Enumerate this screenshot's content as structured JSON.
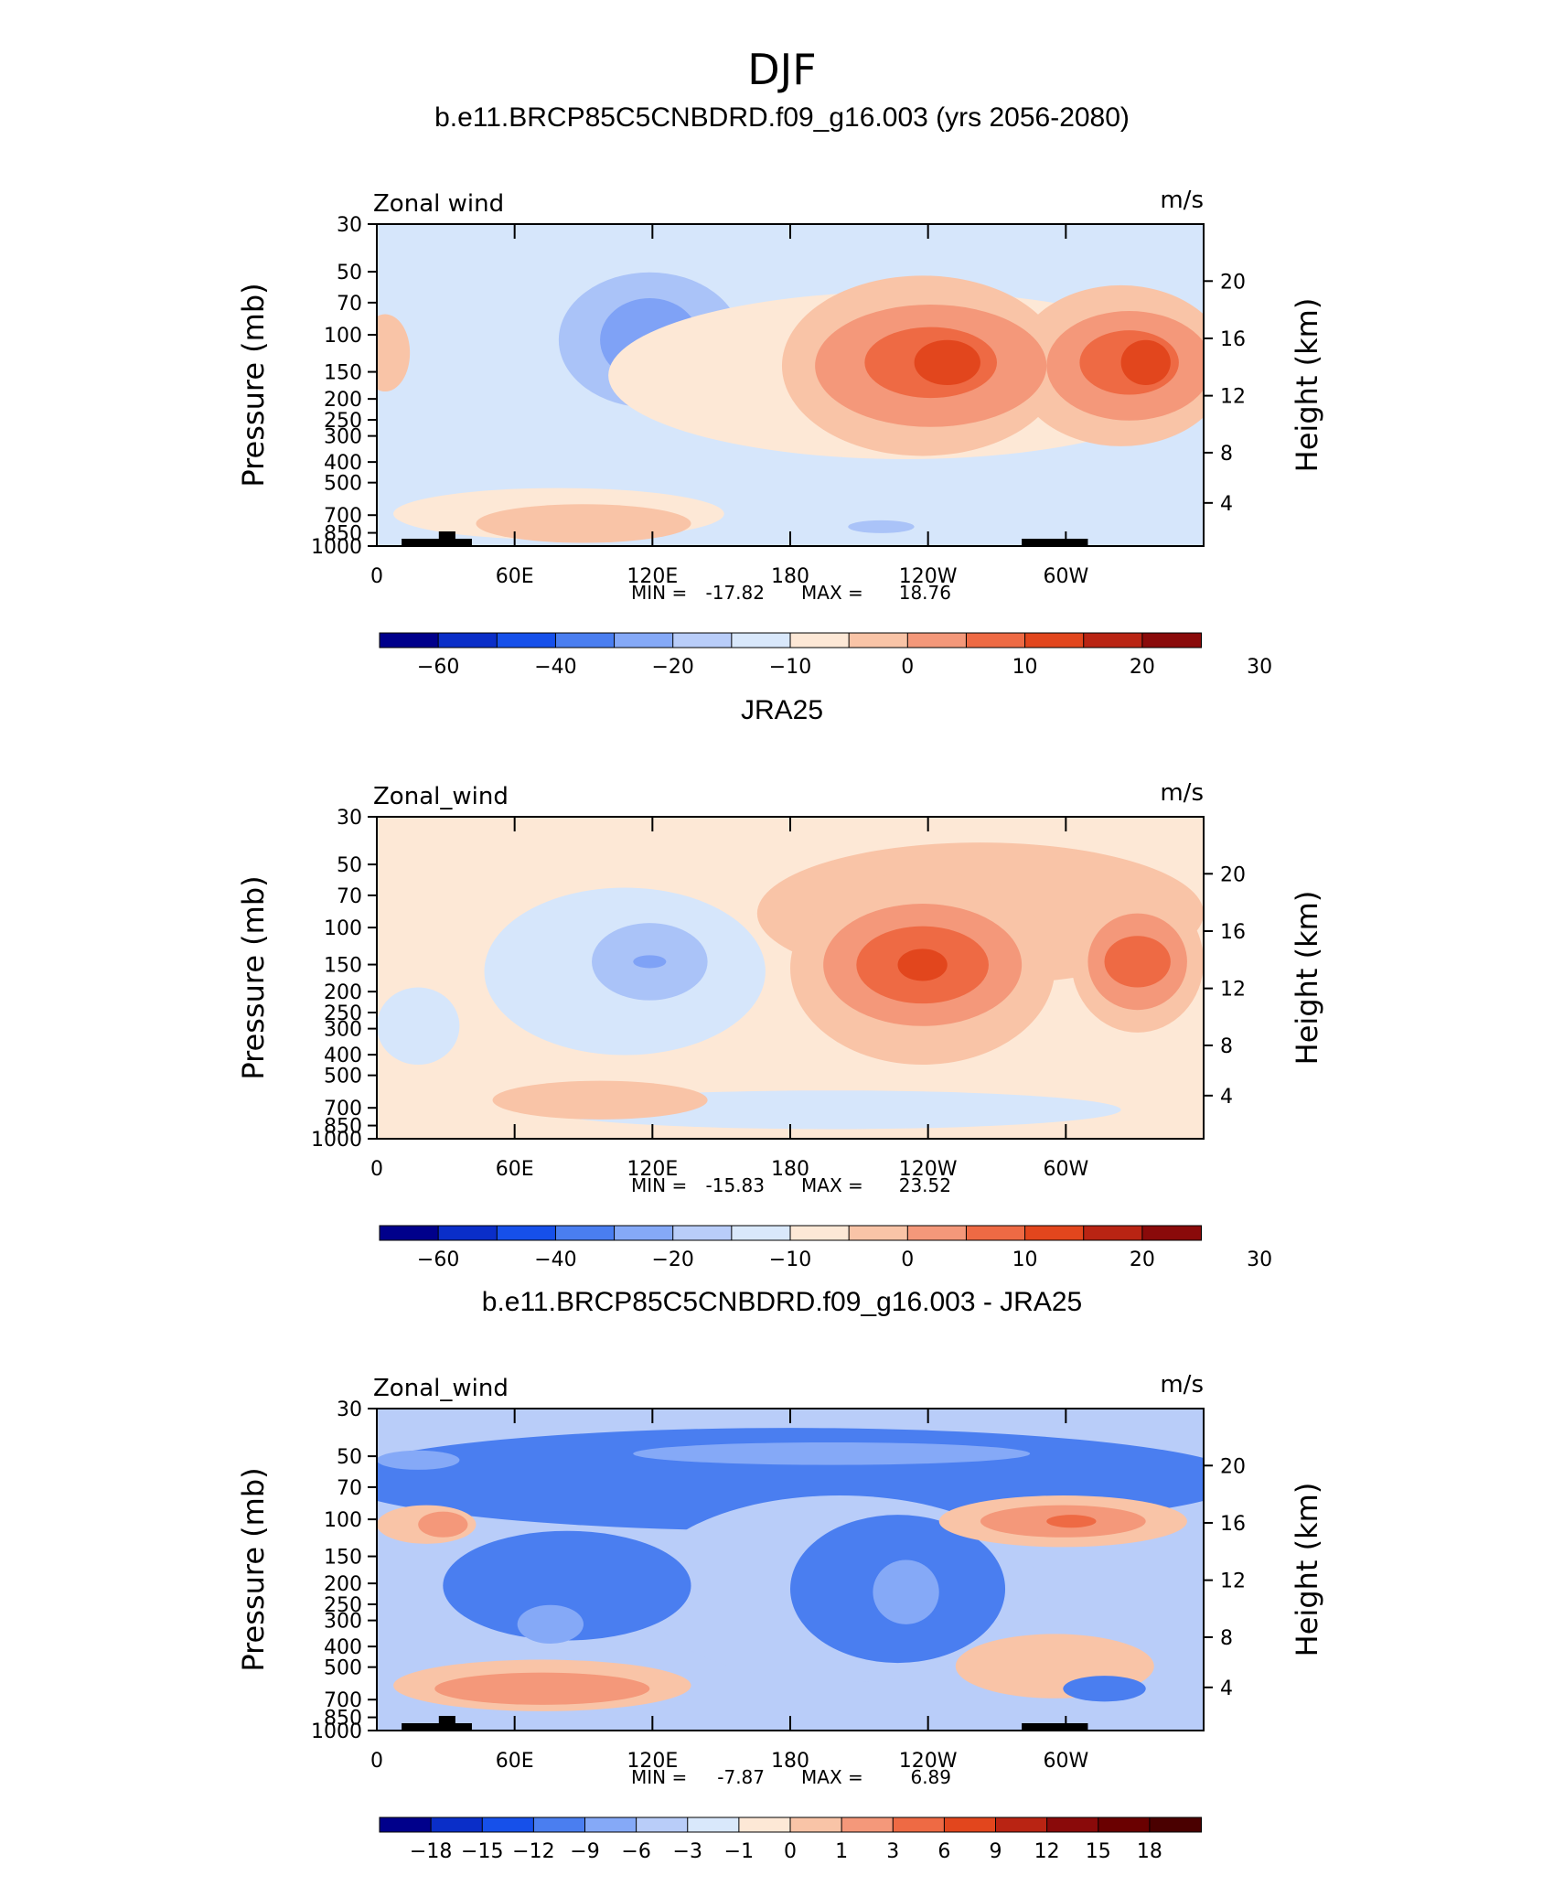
{
  "figure": {
    "title": "DJF"
  },
  "chart_data": [
    {
      "type": "contour",
      "title": "b.e11.BRCP85C5CNBDRD.f09_g16.003 (yrs 2056-2080)",
      "left_string": "Zonal wind",
      "right_string": "m/s",
      "ylabel": "Pressure (mb)",
      "ylabel_right": "Height (km)",
      "xticks": [
        "0",
        "60E",
        "120E",
        "180",
        "120W",
        "60W"
      ],
      "yticks": [
        "30",
        "50",
        "70",
        "100",
        "150",
        "200",
        "250",
        "300",
        "400",
        "500",
        "700",
        "850",
        "1000"
      ],
      "yticks_right": [
        "20",
        "16",
        "12",
        "8",
        "4"
      ],
      "stats": {
        "min_label": "MIN =",
        "min": "-17.82",
        "max_label": "MAX =",
        "max": "18.76"
      },
      "colorbar_labels": [
        "-60",
        "-40",
        "-20",
        "-10",
        "0",
        "10",
        "20",
        "30"
      ],
      "has_topography": true,
      "blobs": [
        {
          "cx": 0.17,
          "cy": 0.09,
          "rx": 0.12,
          "ry": 0.06,
          "level": -5
        },
        {
          "cx": 0.33,
          "cy": 0.36,
          "rx": 0.11,
          "ry": 0.21,
          "level": -10
        },
        {
          "cx": 0.33,
          "cy": 0.36,
          "rx": 0.06,
          "ry": 0.13,
          "level": -20
        },
        {
          "cx": 0.64,
          "cy": 0.47,
          "rx": 0.36,
          "ry": 0.26,
          "level": 0
        },
        {
          "cx": 0.66,
          "cy": 0.44,
          "rx": 0.17,
          "ry": 0.28,
          "level": 5
        },
        {
          "cx": 0.9,
          "cy": 0.44,
          "rx": 0.13,
          "ry": 0.25,
          "level": 5
        },
        {
          "cx": 0.67,
          "cy": 0.44,
          "rx": 0.14,
          "ry": 0.19,
          "level": 10
        },
        {
          "cx": 0.91,
          "cy": 0.44,
          "rx": 0.1,
          "ry": 0.17,
          "level": 10
        },
        {
          "cx": 0.67,
          "cy": 0.43,
          "rx": 0.08,
          "ry": 0.11,
          "level": 15
        },
        {
          "cx": 0.91,
          "cy": 0.43,
          "rx": 0.06,
          "ry": 0.1,
          "level": 15
        },
        {
          "cx": 0.69,
          "cy": 0.43,
          "rx": 0.04,
          "ry": 0.07,
          "level": 20
        },
        {
          "cx": 0.93,
          "cy": 0.43,
          "rx": 0.03,
          "ry": 0.07,
          "level": 20
        },
        {
          "cx": 0.01,
          "cy": 0.4,
          "rx": 0.03,
          "ry": 0.12,
          "level": 5
        },
        {
          "cx": 0.22,
          "cy": 0.9,
          "rx": 0.2,
          "ry": 0.08,
          "level": 0
        },
        {
          "cx": 0.25,
          "cy": 0.93,
          "rx": 0.13,
          "ry": 0.06,
          "level": 5
        },
        {
          "cx": 0.61,
          "cy": 0.94,
          "rx": 0.04,
          "ry": 0.02,
          "level": -10
        }
      ]
    },
    {
      "type": "contour",
      "title": "JRA25",
      "left_string": "Zonal_wind",
      "right_string": "m/s",
      "ylabel": "Pressure (mb)",
      "ylabel_right": "Height (km)",
      "xticks": [
        "0",
        "60E",
        "120E",
        "180",
        "120W",
        "60W"
      ],
      "yticks": [
        "30",
        "50",
        "70",
        "100",
        "150",
        "200",
        "250",
        "300",
        "400",
        "500",
        "700",
        "850",
        "1000"
      ],
      "yticks_right": [
        "20",
        "16",
        "12",
        "8",
        "4"
      ],
      "stats": {
        "min_label": "MIN =",
        "min": "-15.83",
        "max_label": "MAX =",
        "max": "23.52"
      },
      "colorbar_labels": [
        "-60",
        "-40",
        "-20",
        "-10",
        "0",
        "10",
        "20",
        "30"
      ],
      "has_topography": false,
      "blobs": [
        {
          "cx": 0.3,
          "cy": 0.48,
          "rx": 0.17,
          "ry": 0.26,
          "level": -5
        },
        {
          "cx": 0.05,
          "cy": 0.65,
          "rx": 0.05,
          "ry": 0.12,
          "level": -5
        },
        {
          "cx": 0.55,
          "cy": 0.91,
          "rx": 0.35,
          "ry": 0.06,
          "level": -5
        },
        {
          "cx": 0.33,
          "cy": 0.45,
          "rx": 0.07,
          "ry": 0.12,
          "level": -10
        },
        {
          "cx": 0.33,
          "cy": 0.45,
          "rx": 0.02,
          "ry": 0.02,
          "level": -20
        },
        {
          "cx": 0.73,
          "cy": 0.3,
          "rx": 0.27,
          "ry": 0.22,
          "level": 5
        },
        {
          "cx": 0.66,
          "cy": 0.47,
          "rx": 0.16,
          "ry": 0.3,
          "level": 5
        },
        {
          "cx": 0.92,
          "cy": 0.45,
          "rx": 0.08,
          "ry": 0.22,
          "level": 5
        },
        {
          "cx": 0.66,
          "cy": 0.46,
          "rx": 0.12,
          "ry": 0.19,
          "level": 10
        },
        {
          "cx": 0.92,
          "cy": 0.45,
          "rx": 0.06,
          "ry": 0.15,
          "level": 10
        },
        {
          "cx": 0.66,
          "cy": 0.46,
          "rx": 0.08,
          "ry": 0.12,
          "level": 15
        },
        {
          "cx": 0.92,
          "cy": 0.45,
          "rx": 0.04,
          "ry": 0.08,
          "level": 15
        },
        {
          "cx": 0.66,
          "cy": 0.46,
          "rx": 0.03,
          "ry": 0.05,
          "level": 20
        },
        {
          "cx": 0.27,
          "cy": 0.88,
          "rx": 0.13,
          "ry": 0.06,
          "level": 5
        }
      ]
    },
    {
      "type": "contour",
      "title": "b.e11.BRCP85C5CNBDRD.f09_g16.003 - JRA25",
      "left_string": "Zonal_wind",
      "right_string": "m/s",
      "ylabel": "Pressure (mb)",
      "ylabel_right": "Height (km)",
      "xticks": [
        "0",
        "60E",
        "120E",
        "180",
        "120W",
        "60W"
      ],
      "yticks": [
        "30",
        "50",
        "70",
        "100",
        "150",
        "200",
        "250",
        "300",
        "400",
        "500",
        "700",
        "850",
        "1000"
      ],
      "yticks_right": [
        "20",
        "16",
        "12",
        "8",
        "4"
      ],
      "stats": {
        "min_label": "MIN =",
        "min": "-7.87",
        "max_label": "MAX =",
        "max": "6.89"
      },
      "colorbar_labels": [
        "-18",
        "-15",
        "-12",
        "-9",
        "-6",
        "-3",
        "-1",
        "0",
        "1",
        "3",
        "6",
        "9",
        "12",
        "15",
        "18"
      ],
      "has_topography": true,
      "blobs": [
        {
          "cx": 0.5,
          "cy": 0.22,
          "rx": 0.55,
          "ry": 0.16,
          "level": -3
        },
        {
          "cx": 0.05,
          "cy": 0.16,
          "rx": 0.05,
          "ry": 0.03,
          "level": -6
        },
        {
          "cx": 0.55,
          "cy": 0.14,
          "rx": 0.24,
          "ry": 0.035,
          "level": -6
        },
        {
          "cx": 0.56,
          "cy": 0.56,
          "rx": 0.24,
          "ry": 0.29,
          "level": -1
        },
        {
          "cx": 0.63,
          "cy": 0.56,
          "rx": 0.13,
          "ry": 0.23,
          "level": -3
        },
        {
          "cx": 0.64,
          "cy": 0.57,
          "rx": 0.04,
          "ry": 0.1,
          "level": -6
        },
        {
          "cx": 0.23,
          "cy": 0.55,
          "rx": 0.15,
          "ry": 0.17,
          "level": -3
        },
        {
          "cx": 0.21,
          "cy": 0.67,
          "rx": 0.04,
          "ry": 0.06,
          "level": -6
        },
        {
          "cx": 0.06,
          "cy": 0.36,
          "rx": 0.06,
          "ry": 0.06,
          "level": 1
        },
        {
          "cx": 0.08,
          "cy": 0.36,
          "rx": 0.03,
          "ry": 0.04,
          "level": 3
        },
        {
          "cx": 0.83,
          "cy": 0.35,
          "rx": 0.15,
          "ry": 0.08,
          "level": 1
        },
        {
          "cx": 0.83,
          "cy": 0.35,
          "rx": 0.1,
          "ry": 0.05,
          "level": 3
        },
        {
          "cx": 0.84,
          "cy": 0.35,
          "rx": 0.03,
          "ry": 0.02,
          "level": 6
        },
        {
          "cx": 0.2,
          "cy": 0.86,
          "rx": 0.18,
          "ry": 0.08,
          "level": 1
        },
        {
          "cx": 0.2,
          "cy": 0.87,
          "rx": 0.13,
          "ry": 0.05,
          "level": 3
        },
        {
          "cx": 0.82,
          "cy": 0.8,
          "rx": 0.12,
          "ry": 0.1,
          "level": 1
        },
        {
          "cx": 0.88,
          "cy": 0.87,
          "rx": 0.05,
          "ry": 0.04,
          "level": -3
        }
      ]
    }
  ],
  "palettes": {
    "wind": [
      "#00008b",
      "#0a2ec8",
      "#1650ea",
      "#4a7ef0",
      "#85a9f7",
      "#b9cdf9",
      "#d9e8fb",
      "#fde8d6",
      "#f9c4a7",
      "#f4987a",
      "#ee6a44",
      "#e2461d",
      "#b92413",
      "#8a0a0a"
    ],
    "diff": [
      "#00008b",
      "#0a2ec8",
      "#1650ea",
      "#4a7ef0",
      "#85a9f7",
      "#b9cdf9",
      "#d9e8fb",
      "#fde8d6",
      "#f9c4a7",
      "#f4987a",
      "#ee6a44",
      "#e2461d",
      "#b92413",
      "#8a0a0a",
      "#6a0000",
      "#4a0000"
    ]
  },
  "levels": {
    "wind": [
      -70,
      -60,
      -50,
      -40,
      -30,
      -20,
      -10,
      -5,
      0,
      5,
      10,
      15,
      20,
      25,
      30
    ],
    "diff": [
      -18,
      -15,
      -12,
      -9,
      -6,
      -3,
      -1,
      0,
      1,
      3,
      6,
      9,
      12,
      15,
      18
    ]
  }
}
